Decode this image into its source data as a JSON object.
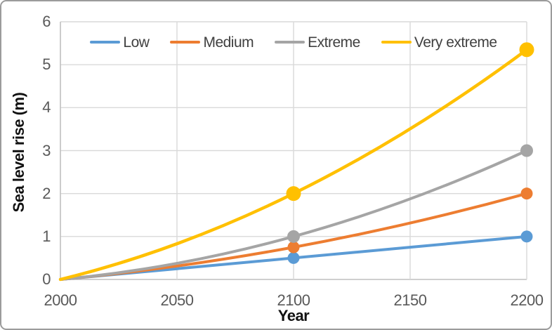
{
  "chart_data": {
    "type": "line",
    "title": "",
    "xlabel": "Year",
    "ylabel": "Sea level rise (m)",
    "x": [
      2000,
      2100,
      2200
    ],
    "series": [
      {
        "name": "Low",
        "color": "#5B9BD5",
        "values": [
          0,
          0.5,
          1.0
        ]
      },
      {
        "name": "Medium",
        "color": "#ED7D31",
        "values": [
          0,
          0.75,
          2.0
        ]
      },
      {
        "name": "Extreme",
        "color": "#A5A5A5",
        "values": [
          0,
          1.0,
          3.0
        ]
      },
      {
        "name": "Very extreme",
        "color": "#FFC000",
        "values": [
          0,
          2.0,
          5.35
        ]
      }
    ],
    "xlim": [
      2000,
      2200
    ],
    "ylim": [
      0,
      6
    ],
    "x_ticks": [
      2000,
      2050,
      2100,
      2150,
      2200
    ],
    "y_ticks": [
      0,
      1,
      2,
      3,
      4,
      5,
      6
    ],
    "grid": true,
    "line_style": "smooth",
    "markers": "circles shown at 2100 and 2200 points only",
    "legend_position": "top-inside"
  },
  "colors": {
    "gridline": "#D9D9D9",
    "axis_line": "#BFBFBF",
    "tick_text": "#595959",
    "legend_text": "#404040",
    "axis_title_text": "#111111",
    "frame_border": "#9B9B9B",
    "background": "#FFFFFF"
  }
}
